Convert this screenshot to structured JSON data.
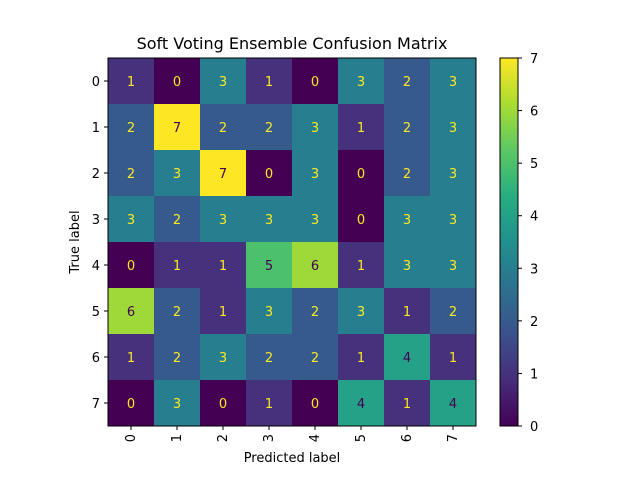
{
  "chart_data": {
    "type": "heatmap",
    "title": "Soft Voting Ensemble Confusion Matrix",
    "xlabel": "Predicted label",
    "ylabel": "True label",
    "x_tick_labels": [
      "0",
      "1",
      "2",
      "3",
      "4",
      "5",
      "6",
      "7"
    ],
    "y_tick_labels": [
      "0",
      "1",
      "2",
      "3",
      "4",
      "5",
      "6",
      "7"
    ],
    "matrix": [
      [
        1,
        0,
        3,
        1,
        0,
        3,
        2,
        3
      ],
      [
        2,
        7,
        2,
        2,
        3,
        1,
        2,
        3
      ],
      [
        2,
        3,
        7,
        0,
        3,
        0,
        2,
        3
      ],
      [
        3,
        2,
        3,
        3,
        3,
        0,
        3,
        3
      ],
      [
        0,
        1,
        1,
        5,
        6,
        1,
        3,
        3
      ],
      [
        6,
        2,
        1,
        3,
        2,
        3,
        1,
        2
      ],
      [
        1,
        2,
        3,
        2,
        2,
        1,
        4,
        1
      ],
      [
        0,
        3,
        0,
        1,
        0,
        4,
        1,
        4
      ]
    ],
    "colormap": "viridis",
    "value_range": [
      0,
      7
    ],
    "colorbar_ticks": [
      "0",
      "1",
      "2",
      "3",
      "4",
      "5",
      "6",
      "7"
    ],
    "text_color_light": "#fde725",
    "text_color_dark": "#440154"
  }
}
